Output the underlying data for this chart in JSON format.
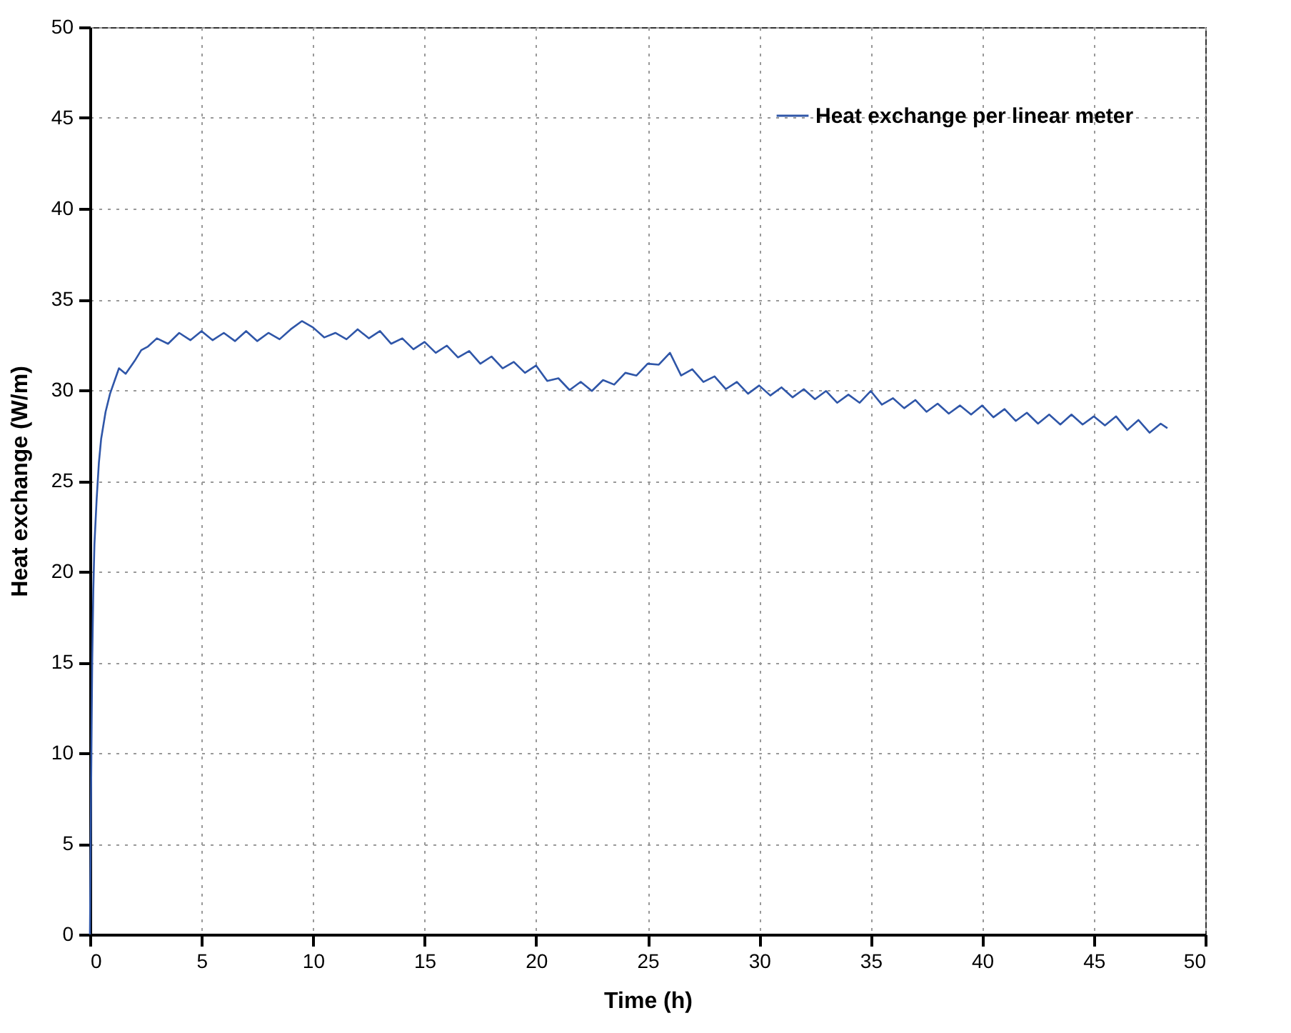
{
  "chart_data": {
    "type": "line",
    "xlabel": "Time (h)",
    "ylabel": "Heat exchange (W/m)",
    "x": [
      0,
      0.05,
      0.1,
      0.15,
      0.2,
      0.3,
      0.4,
      0.5,
      0.7,
      0.9,
      1.1,
      1.3,
      1.6,
      2,
      2.3,
      2.6,
      3,
      3.5,
      4,
      4.5,
      5,
      5.5,
      6,
      6.5,
      7,
      7.5,
      8,
      8.5,
      9,
      9.5,
      10,
      10.5,
      11,
      11.5,
      12,
      12.5,
      13,
      13.5,
      14,
      14.5,
      15,
      15.5,
      16,
      16.5,
      17,
      17.5,
      18,
      18.5,
      19,
      19.5,
      20,
      20.5,
      21,
      21.5,
      22,
      22.5,
      23,
      23.5,
      24,
      24.5,
      25,
      25.5,
      26,
      26.5,
      27,
      27.5,
      28,
      28.5,
      29,
      29.5,
      30,
      30.5,
      31,
      31.5,
      32,
      32.5,
      33,
      33.5,
      34,
      34.5,
      35,
      35.5,
      36,
      36.5,
      37,
      37.5,
      38,
      38.5,
      39,
      39.5,
      40,
      40.5,
      41,
      41.5,
      42,
      42.5,
      43,
      43.5,
      44,
      44.5,
      45,
      45.5,
      46,
      46.5,
      47,
      47.5,
      48,
      48.3
    ],
    "series": [
      {
        "name": "Heat exchange per linear meter",
        "color": "#2f56a8",
        "values": [
          0,
          8,
          15,
          19,
          21.5,
          24,
          26,
          27.3,
          28.8,
          29.8,
          30.5,
          31.2,
          30.9,
          31.6,
          32.2,
          32.4,
          32.85,
          32.55,
          33.15,
          32.75,
          33.25,
          32.75,
          33.15,
          32.7,
          33.25,
          32.7,
          33.15,
          32.8,
          33.35,
          33.8,
          33.45,
          32.9,
          33.15,
          32.8,
          33.35,
          32.85,
          33.25,
          32.55,
          32.85,
          32.25,
          32.65,
          32.05,
          32.45,
          31.8,
          32.15,
          31.45,
          31.85,
          31.2,
          31.55,
          30.95,
          31.35,
          30.5,
          30.65,
          30,
          30.45,
          29.95,
          30.55,
          30.3,
          30.95,
          30.8,
          31.45,
          31.4,
          32.05,
          30.8,
          31.15,
          30.45,
          30.75,
          30.05,
          30.45,
          29.8,
          30.25,
          29.7,
          30.15,
          29.6,
          30.05,
          29.5,
          29.95,
          29.3,
          29.75,
          29.3,
          29.95,
          29.2,
          29.55,
          29,
          29.45,
          28.8,
          29.25,
          28.7,
          29.15,
          28.65,
          29.15,
          28.5,
          28.95,
          28.3,
          28.75,
          28.15,
          28.65,
          28.1,
          28.65,
          28.1,
          28.55,
          28.05,
          28.55,
          27.8,
          28.35,
          27.65,
          28.15,
          27.9
        ]
      }
    ],
    "xlim": [
      0,
      50
    ],
    "xticks": [
      0,
      5,
      10,
      15,
      20,
      25,
      30,
      35,
      40,
      45,
      50
    ],
    "ylim": [
      0,
      50
    ],
    "yticks": [
      0,
      5,
      10,
      15,
      20,
      25,
      30,
      35,
      40,
      45,
      50
    ],
    "grid": true,
    "legend": "top right",
    "marker": "none",
    "line_style": "solid"
  }
}
